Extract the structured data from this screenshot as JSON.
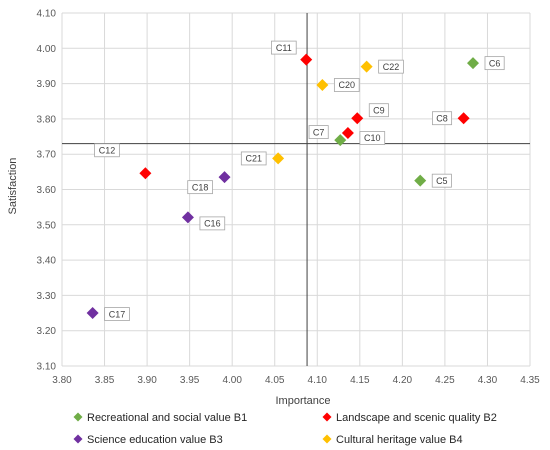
{
  "chart_data": {
    "type": "scatter",
    "xlabel": "Importance",
    "ylabel": "Satisfaction",
    "xlim": [
      3.8,
      4.35
    ],
    "ylim": [
      3.1,
      4.1
    ],
    "xticks": [
      "3.80",
      "3.85",
      "3.90",
      "3.95",
      "4.00",
      "4.05",
      "4.10",
      "4.15",
      "4.20",
      "4.25",
      "4.30",
      "4.35"
    ],
    "yticks": [
      "3.10",
      "3.20",
      "3.30",
      "3.40",
      "3.50",
      "3.60",
      "3.70",
      "3.80",
      "3.90",
      "4.00",
      "4.10"
    ],
    "grid": true,
    "quadrant_lines": {
      "x": 4.088,
      "y": 3.73
    },
    "legend_position": "bottom",
    "series": [
      {
        "name": "Recreational and social value B1",
        "color": "#70ad47",
        "points": [
          {
            "label": "C6",
            "x": 4.283,
            "y": 3.958
          },
          {
            "label": "C5",
            "x": 4.221,
            "y": 3.625
          },
          {
            "label": "C7",
            "x": 4.127,
            "y": 3.74
          }
        ]
      },
      {
        "name": "Landscape and scenic quality B2",
        "color": "#ff0000",
        "points": [
          {
            "label": "C11",
            "x": 4.087,
            "y": 3.968
          },
          {
            "label": "C9",
            "x": 4.147,
            "y": 3.802
          },
          {
            "label": "C10",
            "x": 4.136,
            "y": 3.76
          },
          {
            "label": "C8",
            "x": 4.272,
            "y": 3.802
          },
          {
            "label": "C12",
            "x": 3.898,
            "y": 3.646
          }
        ]
      },
      {
        "name": "Science education value B3",
        "color": "#7030a0",
        "points": [
          {
            "label": "C18",
            "x": 3.991,
            "y": 3.635
          },
          {
            "label": "C16",
            "x": 3.948,
            "y": 3.521
          },
          {
            "label": "C17",
            "x": 3.836,
            "y": 3.25
          }
        ]
      },
      {
        "name": "Cultural heritage value B4",
        "color": "#ffc000",
        "points": [
          {
            "label": "C22",
            "x": 4.158,
            "y": 3.948
          },
          {
            "label": "C20",
            "x": 4.106,
            "y": 3.896
          },
          {
            "label": "C21",
            "x": 4.054,
            "y": 3.688
          }
        ]
      }
    ]
  }
}
